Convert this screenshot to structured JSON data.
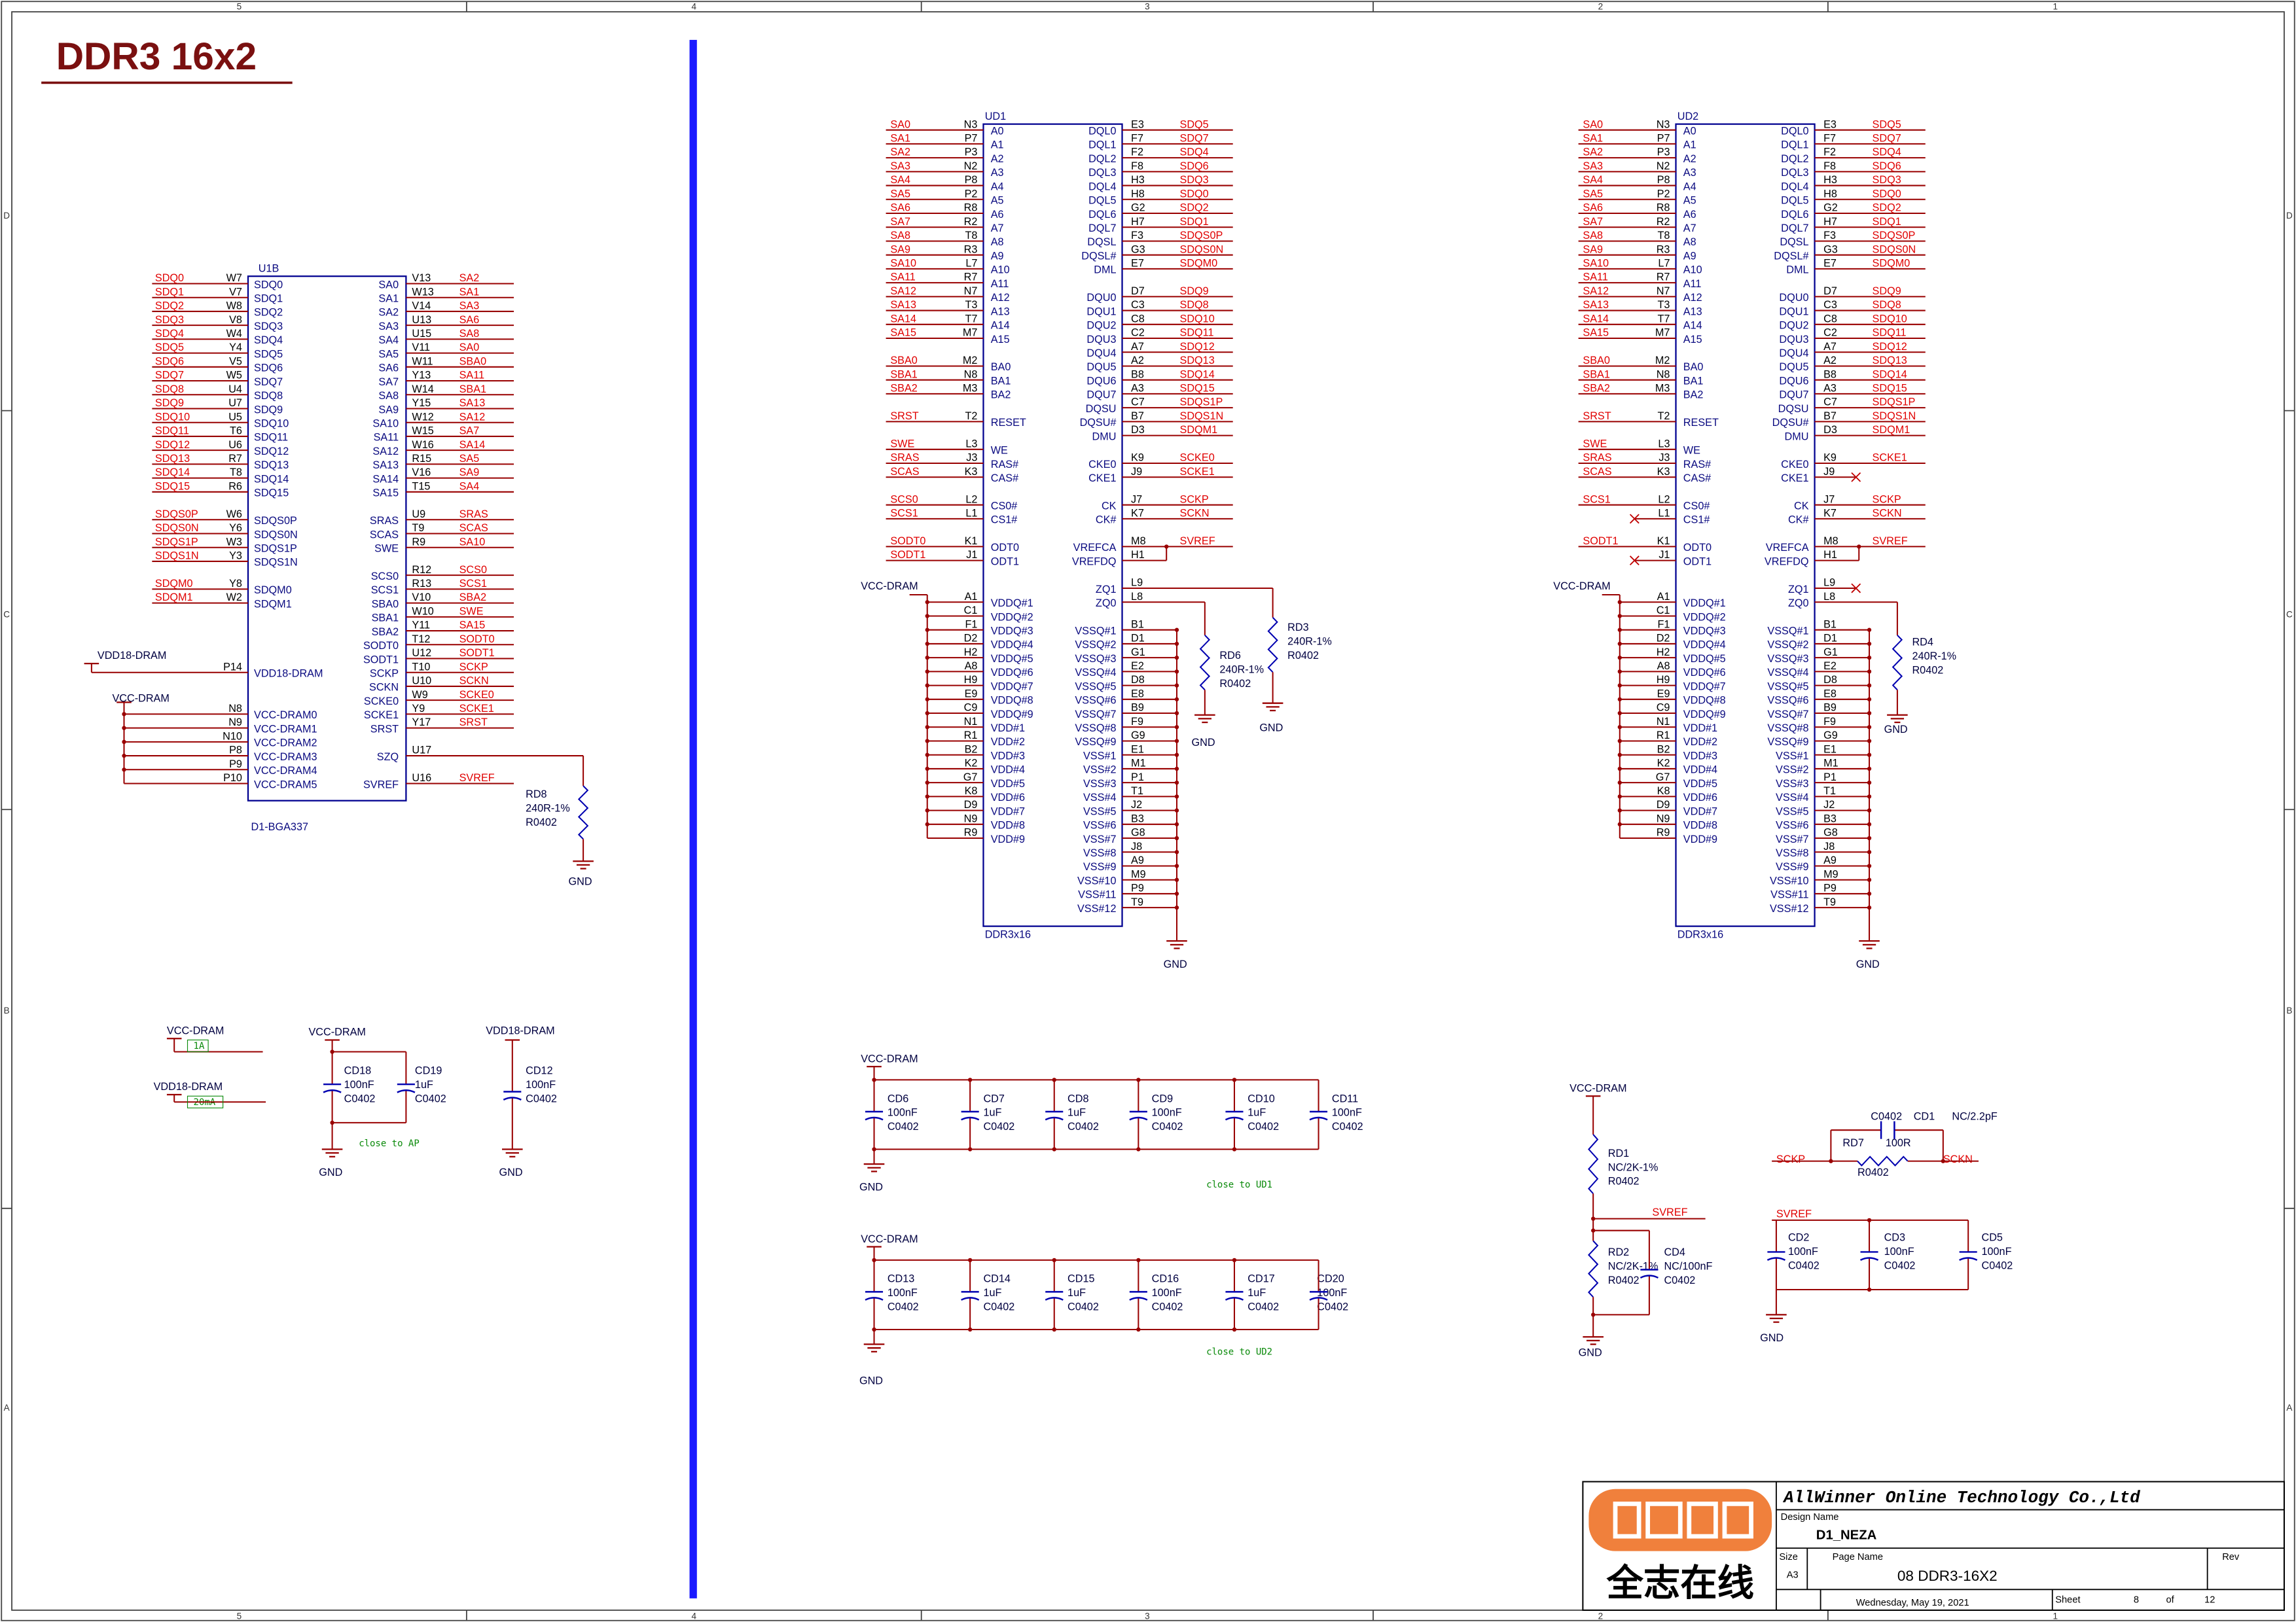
{
  "title": "DDR3 16x2",
  "zones": {
    "columns": [
      "5",
      "4",
      "3",
      "2",
      "1"
    ],
    "rows": [
      "D",
      "C",
      "B",
      "A"
    ]
  },
  "u1b": {
    "ref": "U1B",
    "footprint": "D1-BGA337",
    "left": [
      [
        [
          "W7",
          "SDQ0",
          "SDQ0"
        ],
        [
          "V7",
          "SDQ1",
          "SDQ1"
        ],
        [
          "W8",
          "SDQ2",
          "SDQ2"
        ],
        [
          "V8",
          "SDQ3",
          "SDQ3"
        ],
        [
          "W4",
          "SDQ4",
          "SDQ4"
        ],
        [
          "Y4",
          "SDQ5",
          "SDQ5"
        ],
        [
          "V5",
          "SDQ6",
          "SDQ6"
        ],
        [
          "W5",
          "SDQ7",
          "SDQ7"
        ],
        [
          "U4",
          "SDQ8",
          "SDQ8"
        ],
        [
          "U7",
          "SDQ9",
          "SDQ9"
        ],
        [
          "U5",
          "SDQ10",
          "SDQ10"
        ],
        [
          "T6",
          "SDQ11",
          "SDQ11"
        ],
        [
          "U6",
          "SDQ12",
          "SDQ12"
        ],
        [
          "R7",
          "SDQ13",
          "SDQ13"
        ],
        [
          "T8",
          "SDQ14",
          "SDQ14"
        ],
        [
          "R6",
          "SDQ15",
          "SDQ15"
        ]
      ],
      [
        [
          "W6",
          "SDQS0P",
          "SDQS0P"
        ],
        [
          "Y6",
          "SDQS0N",
          "SDQS0N"
        ],
        [
          "W3",
          "SDQS1P",
          "SDQS1P"
        ],
        [
          "Y3",
          "SDQS1N",
          "SDQS1N"
        ]
      ],
      [
        [
          "Y8",
          "SDQM0",
          "SDQM0"
        ],
        [
          "W2",
          "SDQM1",
          "SDQM1"
        ]
      ]
    ],
    "vdd18_pin": [
      "P14",
      "VDD18-DRAM"
    ],
    "vcc_pins": [
      [
        "N8",
        "VCC-DRAM0"
      ],
      [
        "N9",
        "VCC-DRAM1"
      ],
      [
        "N10",
        "VCC-DRAM2"
      ],
      [
        "P8",
        "VCC-DRAM3"
      ],
      [
        "P9",
        "VCC-DRAM4"
      ],
      [
        "P10",
        "VCC-DRAM5"
      ]
    ],
    "right": [
      [
        [
          "V13",
          "SA0",
          "SA2"
        ],
        [
          "W13",
          "SA1",
          "SA1"
        ],
        [
          "V14",
          "SA2",
          "SA3"
        ],
        [
          "U13",
          "SA3",
          "SA6"
        ],
        [
          "U15",
          "SA4",
          "SA8"
        ],
        [
          "V11",
          "SA5",
          "SA0"
        ],
        [
          "W11",
          "SA6",
          "SBA0"
        ],
        [
          "Y13",
          "SA7",
          "SA11"
        ],
        [
          "W14",
          "SA8",
          "SBA1"
        ],
        [
          "Y15",
          "SA9",
          "SA13"
        ],
        [
          "W12",
          "SA10",
          "SA12"
        ],
        [
          "W15",
          "SA11",
          "SA7"
        ],
        [
          "W16",
          "SA12",
          "SA14"
        ],
        [
          "R15",
          "SA13",
          "SA5"
        ],
        [
          "V16",
          "SA14",
          "SA9"
        ],
        [
          "T15",
          "SA15",
          "SA4"
        ]
      ],
      [
        [
          "U9",
          "SRAS",
          "SRAS"
        ],
        [
          "T9",
          "SCAS",
          "SCAS"
        ],
        [
          "R9",
          "SWE",
          "SA10"
        ]
      ],
      [
        [
          "R12",
          "SCS0",
          "SCS0"
        ],
        [
          "R13",
          "SCS1",
          "SCS1"
        ],
        [
          "V10",
          "SBA0",
          "SBA2"
        ],
        [
          "W10",
          "SBA1",
          "SWE"
        ],
        [
          "Y11",
          "SBA2",
          "SA15"
        ],
        [
          "T12",
          "SODT0",
          "SODT0"
        ],
        [
          "U12",
          "SODT1",
          "SODT1"
        ],
        [
          "T10",
          "SCKP",
          "SCKP"
        ],
        [
          "U10",
          "SCKN",
          "SCKN"
        ],
        [
          "W9",
          "SCKE0",
          "SCKE0"
        ],
        [
          "Y9",
          "SCKE1",
          "SCKE1"
        ],
        [
          "Y17",
          "SRST",
          "SRST"
        ]
      ],
      [
        [
          "U17",
          "SZQ",
          null
        ]
      ],
      [
        [
          "U16",
          "SVREF",
          "SVREF"
        ]
      ]
    ]
  },
  "ddr3_pins": {
    "left": [
      [
        [
          "N3",
          "A0"
        ],
        [
          "P7",
          "A1"
        ],
        [
          "P3",
          "A2"
        ],
        [
          "N2",
          "A3"
        ],
        [
          "P8",
          "A4"
        ],
        [
          "P2",
          "A5"
        ],
        [
          "R8",
          "A6"
        ],
        [
          "R2",
          "A7"
        ],
        [
          "T8",
          "A8"
        ],
        [
          "R3",
          "A9"
        ],
        [
          "L7",
          "A10"
        ],
        [
          "R7",
          "A11"
        ],
        [
          "N7",
          "A12"
        ],
        [
          "T3",
          "A13"
        ],
        [
          "T7",
          "A14"
        ],
        [
          "M7",
          "A15"
        ]
      ],
      [
        [
          "M2",
          "BA0"
        ],
        [
          "N8",
          "BA1"
        ],
        [
          "M3",
          "BA2"
        ]
      ],
      [
        [
          "T2",
          "RESET"
        ]
      ],
      [
        [
          "L3",
          "WE"
        ],
        [
          "J3",
          "RAS#"
        ],
        [
          "K3",
          "CAS#"
        ]
      ],
      [
        [
          "L2",
          "CS0#"
        ],
        [
          "L1",
          "CS1#"
        ]
      ],
      [
        [
          "K1",
          "ODT0"
        ],
        [
          "J1",
          "ODT1"
        ]
      ]
    ],
    "power": [
      [
        "A1",
        "VDDQ#1"
      ],
      [
        "C1",
        "VDDQ#2"
      ],
      [
        "F1",
        "VDDQ#3"
      ],
      [
        "D2",
        "VDDQ#4"
      ],
      [
        "H2",
        "VDDQ#5"
      ],
      [
        "A8",
        "VDDQ#6"
      ],
      [
        "H9",
        "VDDQ#7"
      ],
      [
        "E9",
        "VDDQ#8"
      ],
      [
        "C9",
        "VDDQ#9"
      ],
      [
        "N1",
        "VDD#1"
      ],
      [
        "R1",
        "VDD#2"
      ],
      [
        "B2",
        "VDD#3"
      ],
      [
        "K2",
        "VDD#4"
      ],
      [
        "G7",
        "VDD#5"
      ],
      [
        "K8",
        "VDD#6"
      ],
      [
        "D9",
        "VDD#7"
      ],
      [
        "N9",
        "VDD#8"
      ],
      [
        "R9",
        "VDD#9"
      ]
    ],
    "right": [
      [
        [
          "E3",
          "DQL0"
        ],
        [
          "F7",
          "DQL1"
        ],
        [
          "F2",
          "DQL2"
        ],
        [
          "F8",
          "DQL3"
        ],
        [
          "H3",
          "DQL4"
        ],
        [
          "H8",
          "DQL5"
        ],
        [
          "G2",
          "DQL6"
        ],
        [
          "H7",
          "DQL7"
        ],
        [
          "F3",
          "DQSL"
        ],
        [
          "G3",
          "DQSL#"
        ],
        [
          "E7",
          "DML"
        ]
      ],
      [
        [
          "D7",
          "DQU0"
        ],
        [
          "C3",
          "DQU1"
        ],
        [
          "C8",
          "DQU2"
        ],
        [
          "C2",
          "DQU3"
        ],
        [
          "A7",
          "DQU4"
        ],
        [
          "A2",
          "DQU5"
        ],
        [
          "B8",
          "DQU6"
        ],
        [
          "A3",
          "DQU7"
        ],
        [
          "C7",
          "DQSU"
        ],
        [
          "B7",
          "DQSU#"
        ],
        [
          "D3",
          "DMU"
        ]
      ],
      [
        [
          "K9",
          "CKE0"
        ],
        [
          "J9",
          "CKE1"
        ]
      ],
      [
        [
          "J7",
          "CK"
        ],
        [
          "K7",
          "CK#"
        ]
      ],
      [
        [
          "M8",
          "VREFCA"
        ],
        [
          "H1",
          "VREFDQ"
        ]
      ],
      [
        [
          "L9",
          "ZQ1"
        ],
        [
          "L8",
          "ZQ0"
        ]
      ]
    ],
    "ground": [
      [
        "B1",
        "VSSQ#1"
      ],
      [
        "D1",
        "VSSQ#2"
      ],
      [
        "G1",
        "VSSQ#3"
      ],
      [
        "E2",
        "VSSQ#4"
      ],
      [
        "D8",
        "VSSQ#5"
      ],
      [
        "E8",
        "VSSQ#6"
      ],
      [
        "B9",
        "VSSQ#7"
      ],
      [
        "F9",
        "VSSQ#8"
      ],
      [
        "G9",
        "VSSQ#9"
      ],
      [
        "E1",
        "VSS#1"
      ],
      [
        "M1",
        "VSS#2"
      ],
      [
        "P1",
        "VSS#3"
      ],
      [
        "T1",
        "VSS#4"
      ],
      [
        "J2",
        "VSS#5"
      ],
      [
        "B3",
        "VSS#6"
      ],
      [
        "G8",
        "VSS#7"
      ],
      [
        "J8",
        "VSS#8"
      ],
      [
        "A9",
        "VSS#9"
      ],
      [
        "M9",
        "VSS#10"
      ],
      [
        "P9",
        "VSS#11"
      ],
      [
        "T9",
        "VSS#12"
      ]
    ]
  },
  "chips": [
    {
      "ref": "UD1",
      "type": "DDR3x16",
      "left_nets": [
        [
          "SA0",
          "SA1",
          "SA2",
          "SA3",
          "SA4",
          "SA5",
          "SA6",
          "SA7",
          "SA8",
          "SA9",
          "SA10",
          "SA11",
          "SA12",
          "SA13",
          "SA14",
          "SA15"
        ],
        [
          "SBA0",
          "SBA1",
          "SBA2"
        ],
        [
          "SRST"
        ],
        [
          "SWE",
          "SRAS",
          "SCAS"
        ],
        [
          "SCS0",
          "SCS1"
        ],
        [
          "SODT0",
          "SODT1"
        ]
      ],
      "right_nets": [
        [
          "SDQ5",
          "SDQ7",
          "SDQ4",
          "SDQ6",
          "SDQ3",
          "SDQ0",
          "SDQ2",
          "SDQ1",
          "SDQS0P",
          "SDQS0N",
          "SDQM0"
        ],
        [
          "SDQ9",
          "SDQ8",
          "SDQ10",
          "SDQ11",
          "SDQ12",
          "SDQ13",
          "SDQ14",
          "SDQ15",
          "SDQS1P",
          "SDQS1N",
          "SDQM1"
        ],
        [
          "SCKE0",
          "SCKE1"
        ],
        [
          "SCKP",
          "SCKN"
        ],
        [
          "SVREF",
          null
        ],
        [
          null,
          null
        ]
      ]
    },
    {
      "ref": "UD2",
      "type": "DDR3x16",
      "left_nets": [
        [
          "SA0",
          "SA1",
          "SA2",
          "SA3",
          "SA4",
          "SA5",
          "SA6",
          "SA7",
          "SA8",
          "SA9",
          "SA10",
          "SA11",
          "SA12",
          "SA13",
          "SA14",
          "SA15"
        ],
        [
          "SBA0",
          "SBA1",
          "SBA2"
        ],
        [
          "SRST"
        ],
        [
          "SWE",
          "SRAS",
          "SCAS"
        ],
        [
          "SCS1",
          null
        ],
        [
          "SODT1",
          null
        ]
      ],
      "right_nets": [
        [
          "SDQ5",
          "SDQ7",
          "SDQ4",
          "SDQ6",
          "SDQ3",
          "SDQ0",
          "SDQ2",
          "SDQ1",
          "SDQS0P",
          "SDQS0N",
          "SDQM0"
        ],
        [
          "SDQ9",
          "SDQ8",
          "SDQ10",
          "SDQ11",
          "SDQ12",
          "SDQ13",
          "SDQ14",
          "SDQ15",
          "SDQS1P",
          "SDQS1N",
          "SDQM1"
        ],
        [
          "SCKE1",
          null
        ],
        [
          "SCKP",
          "SCKN"
        ],
        [
          "SVREF",
          null
        ],
        [
          null,
          null
        ]
      ]
    }
  ],
  "parts": [
    {
      "ref": "RD8",
      "value": "240R-1%",
      "package": "R0402"
    },
    {
      "ref": "RD6",
      "value": "240R-1%",
      "package": "R0402"
    },
    {
      "ref": "RD3",
      "value": "240R-1%",
      "package": "R0402"
    },
    {
      "ref": "RD4",
      "value": "240R-1%",
      "package": "R0402"
    },
    {
      "ref": "CD18",
      "value": "100nF",
      "package": "C0402"
    },
    {
      "ref": "CD19",
      "value": "1uF",
      "package": "C0402"
    },
    {
      "ref": "CD12",
      "value": "100nF",
      "package": "C0402"
    },
    {
      "ref": "CD6",
      "value": "100nF",
      "package": "C0402"
    },
    {
      "ref": "CD7",
      "value": "1uF",
      "package": "C0402"
    },
    {
      "ref": "CD8",
      "value": "1uF",
      "package": "C0402"
    },
    {
      "ref": "CD9",
      "value": "100nF",
      "package": "C0402"
    },
    {
      "ref": "CD10",
      "value": "1uF",
      "package": "C0402"
    },
    {
      "ref": "CD11",
      "value": "100nF",
      "package": "C0402"
    },
    {
      "ref": "CD13",
      "value": "100nF",
      "package": "C0402"
    },
    {
      "ref": "CD14",
      "value": "1uF",
      "package": "C0402"
    },
    {
      "ref": "CD15",
      "value": "1uF",
      "package": "C0402"
    },
    {
      "ref": "CD16",
      "value": "100nF",
      "package": "C0402"
    },
    {
      "ref": "CD17",
      "value": "1uF",
      "package": "C0402"
    },
    {
      "ref": "CD20",
      "value": "100nF",
      "package": "C0402"
    },
    {
      "ref": "RD1",
      "value": "NC/2K-1%",
      "package": "R0402"
    },
    {
      "ref": "RD2",
      "value": "NC/2K-1%",
      "package": "R0402"
    },
    {
      "ref": "CD4",
      "value": "NC/100nF",
      "package": "C0402"
    },
    {
      "ref": "CD2",
      "value": "100nF",
      "package": "C0402"
    },
    {
      "ref": "CD3",
      "value": "100nF",
      "package": "C0402"
    },
    {
      "ref": "CD5",
      "value": "100nF",
      "package": "C0402"
    },
    {
      "ref": "RD7",
      "value": "100R",
      "package": "R0402"
    },
    {
      "ref": "CD1",
      "value": "NC/2.2pF",
      "package": "C0402"
    }
  ],
  "labels": [
    "VDD18-DRAM",
    "VCC-DRAM",
    "GND",
    "VCC-DRAM",
    "GND",
    "GND",
    "GND",
    "VCC-DRAM",
    "GND",
    "GND",
    "VCC-DRAM",
    "1A",
    "VDD18-DRAM",
    "20mA",
    "VCC-DRAM",
    "GND",
    "close to AP",
    "VDD18-DRAM",
    "GND",
    "VCC-DRAM",
    "GND",
    "close to UD1",
    "VCC-DRAM",
    "GND",
    "close to UD2",
    "VCC-DRAM",
    "SVREF",
    "GND",
    "SCKP",
    "SCKN",
    "SVREF",
    "GND"
  ],
  "title_block": {
    "company": "AllWinner Online Technology Co.,Ltd",
    "design_name_label": "Design Name",
    "design_name": "D1_NEZA",
    "size_label": "Size",
    "size": "A3",
    "page_name_label": "Page Name",
    "page_name": "08 DDR3-16X2",
    "rev_label": "Rev",
    "date": "Wednesday, May 19, 2021",
    "sheet_label": "Sheet",
    "sheet": 8,
    "of_label": "of",
    "total_sheets": 12,
    "logo_text": "全志在线"
  }
}
